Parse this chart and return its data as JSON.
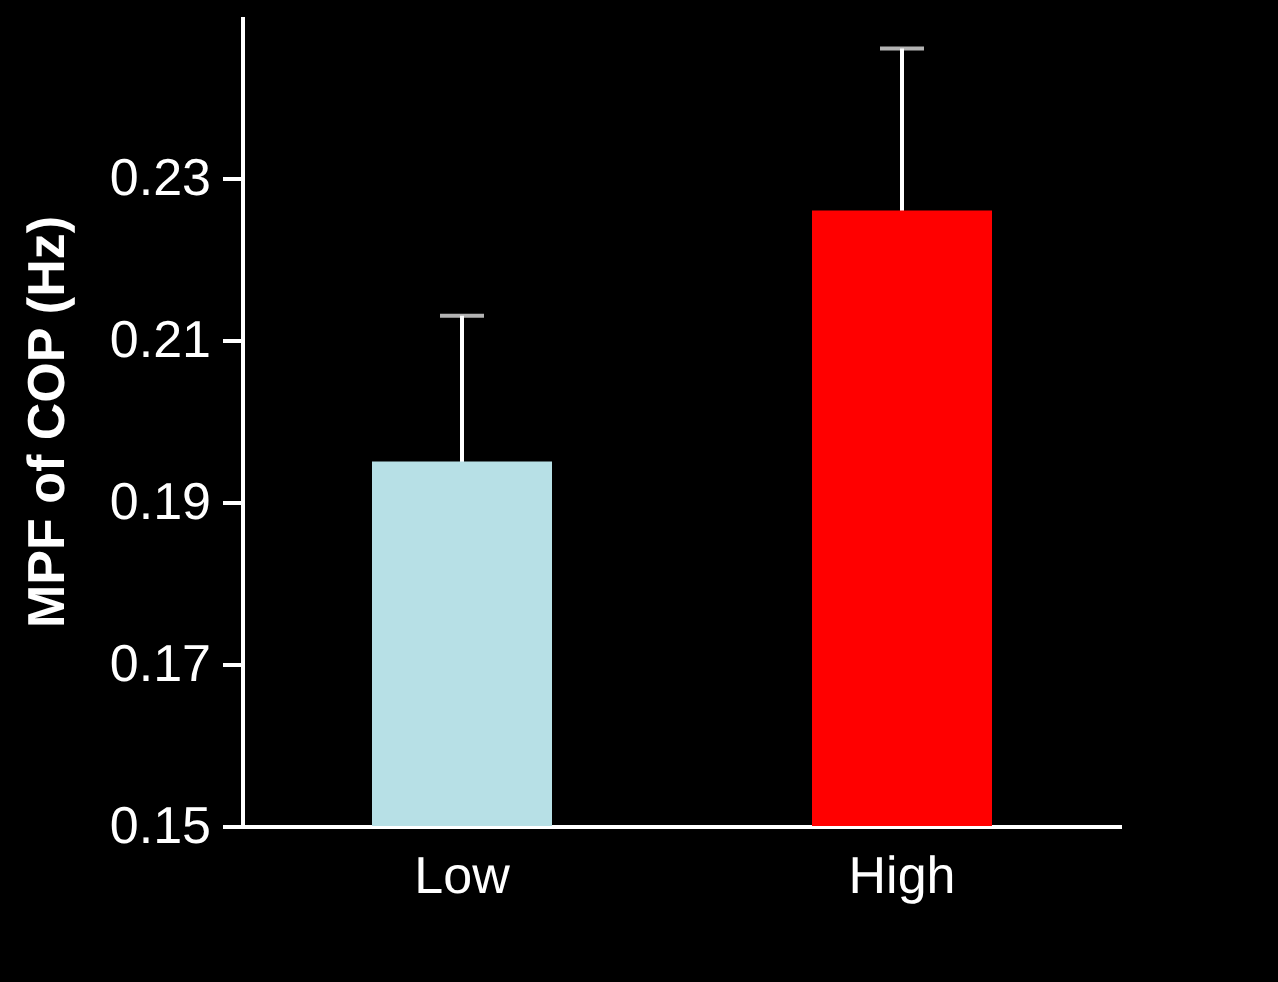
{
  "chart_data": {
    "type": "bar",
    "ylabel": "MPF of COP (Hz)",
    "categories": [
      "Low",
      "High"
    ],
    "values": [
      0.195,
      0.226
    ],
    "colors": [
      "#b7e0e6",
      "#ff0000"
    ],
    "errors": [
      0.018,
      0.02
    ],
    "ylim": [
      0.15,
      0.25
    ],
    "yticks": [
      0.15,
      0.17,
      0.19,
      0.21,
      0.23
    ],
    "grid": false
  }
}
